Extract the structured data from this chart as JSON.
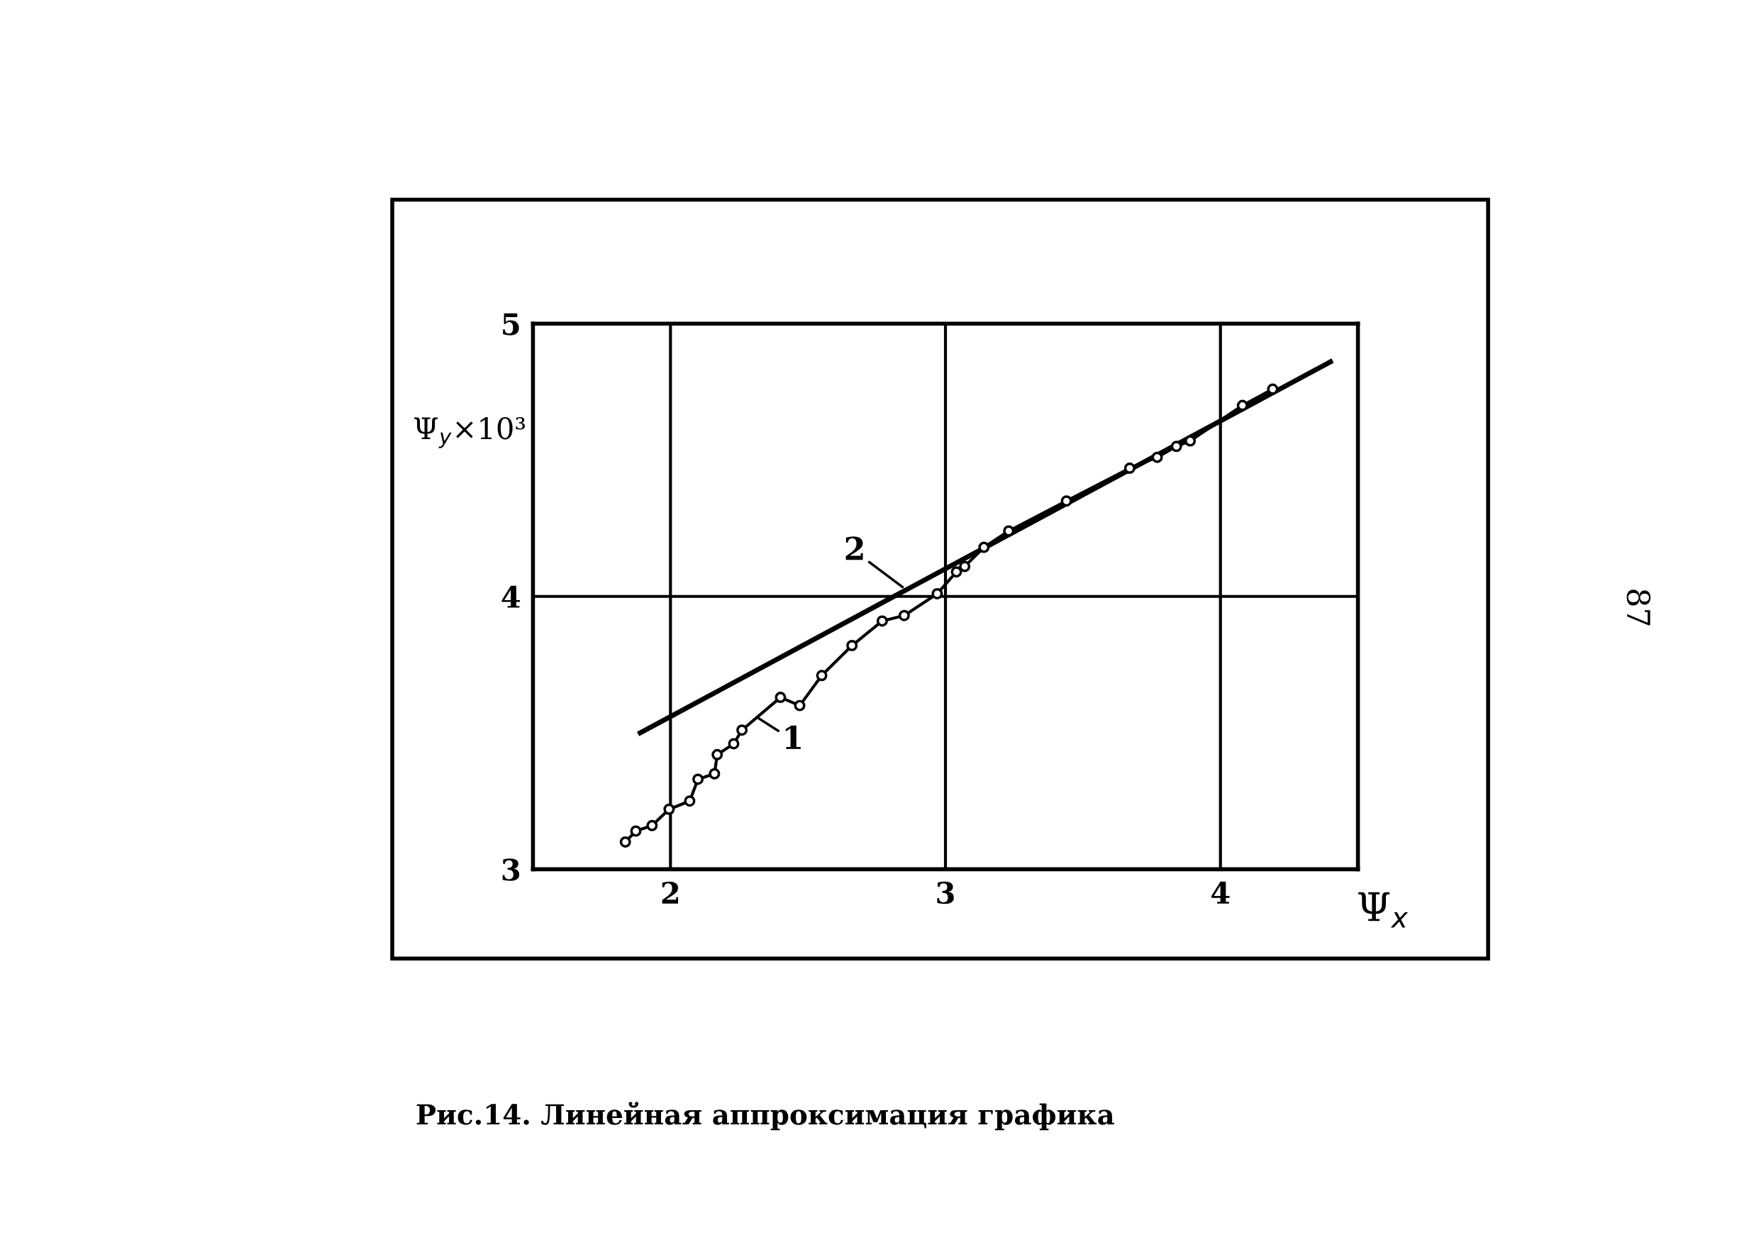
{
  "chart_data": {
    "type": "line",
    "xlabel": "Ψ$_{x}$",
    "ylabel": "Ψ$_{y}$×10³",
    "xlim": [
      1.5,
      4.5
    ],
    "ylim": [
      3,
      5
    ],
    "xticks": [
      2,
      3,
      4
    ],
    "yticks": [
      3,
      4,
      5
    ],
    "grid": true,
    "series": [
      {
        "color": "#000000",
        "marker": "circle",
        "x": [
          1.836,
          1.874,
          1.933,
          1.995,
          2.07,
          2.1,
          2.16,
          2.17,
          2.23,
          2.26,
          2.4,
          2.47,
          2.55,
          2.66,
          2.77,
          2.85,
          2.97,
          3.04,
          3.07,
          3.14,
          3.23,
          3.44,
          3.67,
          3.77,
          3.84,
          3.89,
          4.08,
          4.19
        ],
        "values": [
          3.1,
          3.14,
          3.16,
          3.22,
          3.25,
          3.33,
          3.35,
          3.42,
          3.46,
          3.51,
          3.63,
          3.6,
          3.71,
          3.82,
          3.91,
          3.93,
          4.01,
          4.09,
          4.11,
          4.18,
          4.24,
          4.35,
          4.47,
          4.51,
          4.55,
          4.57,
          4.7,
          4.76
        ]
      },
      {
        "color": "#000000",
        "marker": "none",
        "x": [
          1.89,
          4.4
        ],
        "values": [
          3.5,
          4.86
        ]
      }
    ],
    "annotations": [
      {
        "text": "1",
        "x": 2.315,
        "y": 3.557
      },
      {
        "text": "2",
        "x": 2.85,
        "y": 4.03
      },
      "Рис.14. Линейная аппроксимация графика",
      "87"
    ]
  }
}
